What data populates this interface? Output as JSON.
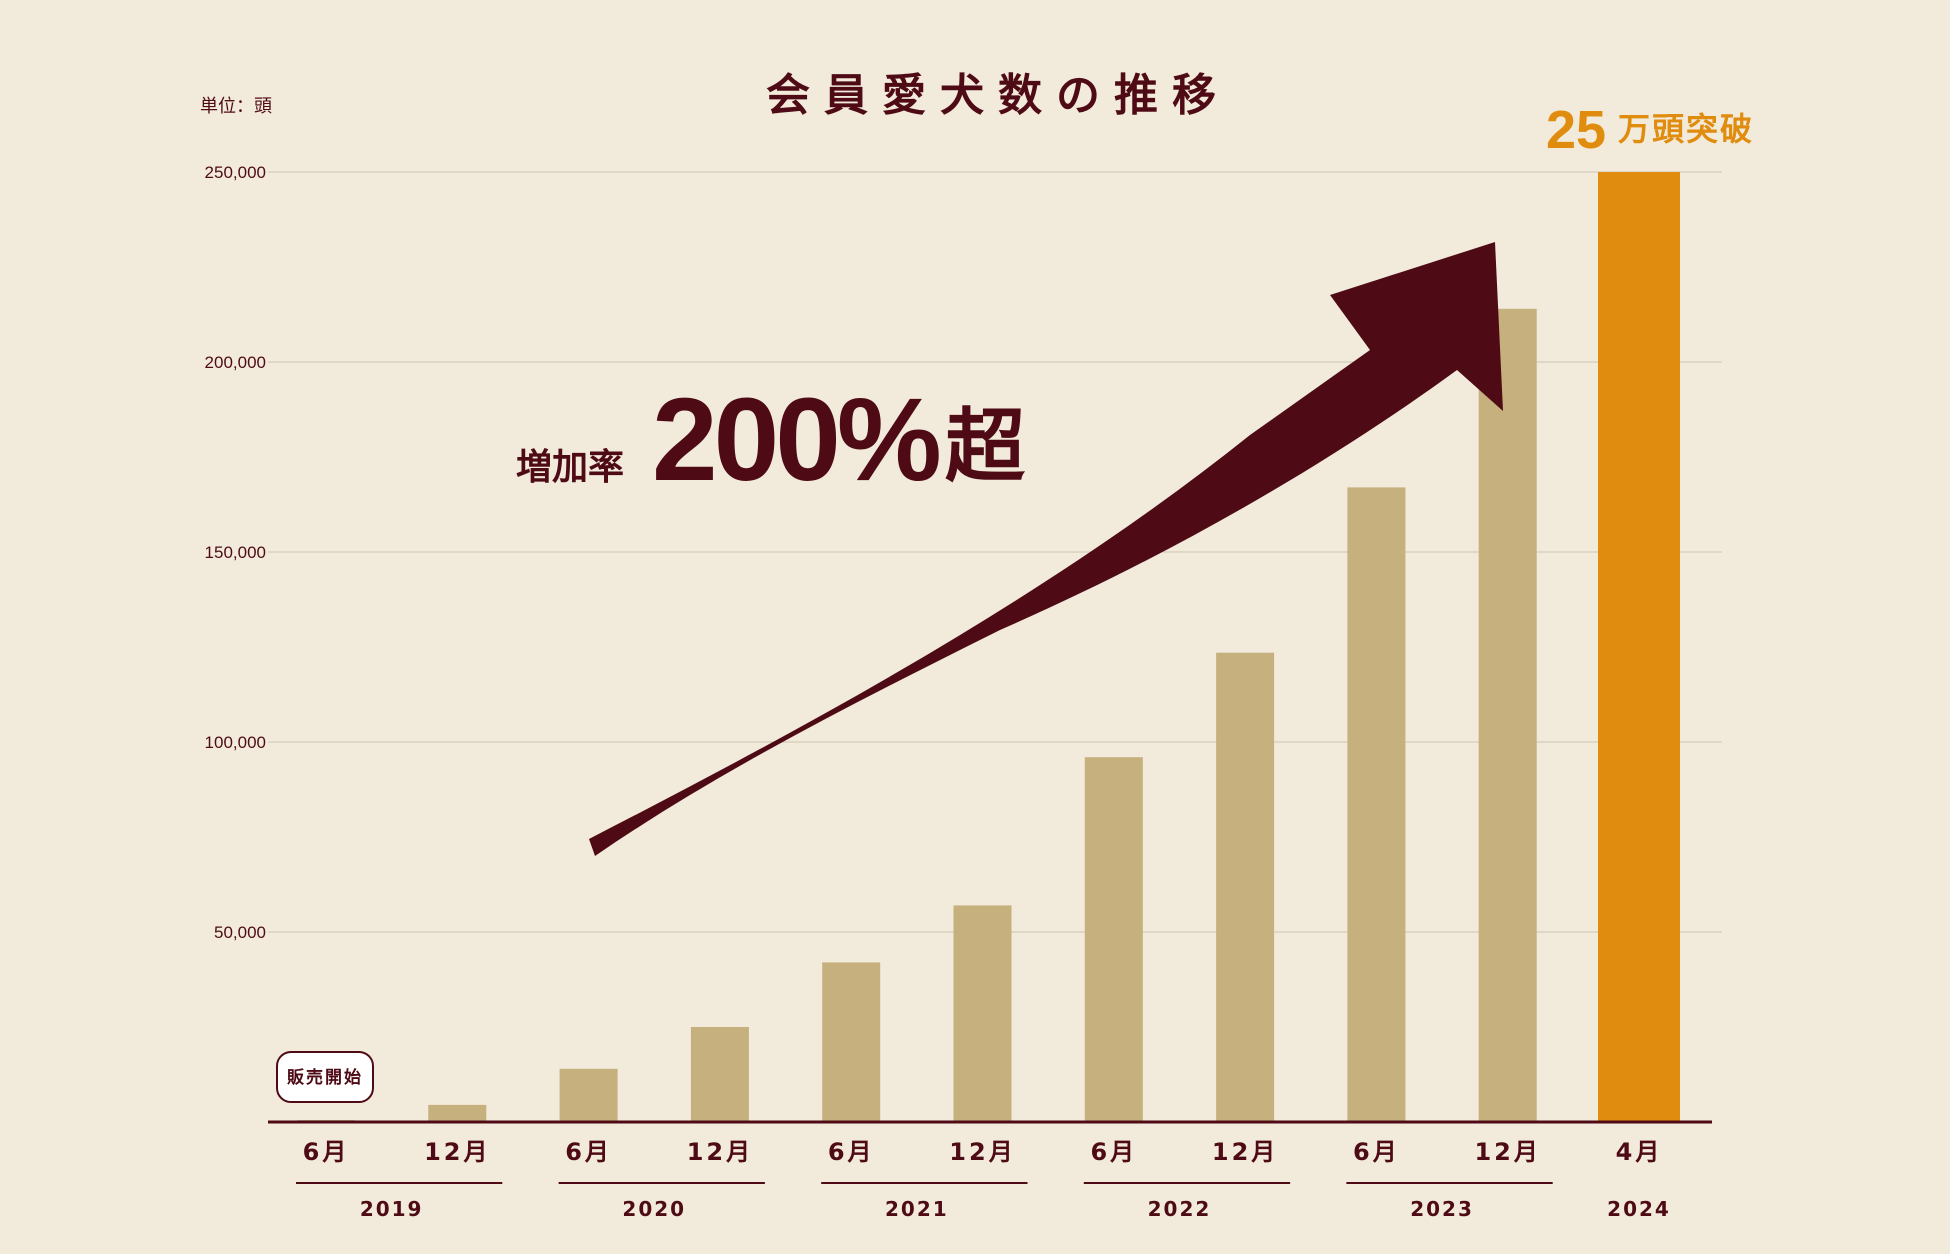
{
  "chart_data": {
    "type": "bar",
    "title": "会員愛犬数の推移",
    "unit_label": "単位：頭",
    "categories": [
      "6月",
      "12月",
      "6月",
      "12月",
      "6月",
      "12月",
      "6月",
      "12月",
      "6月",
      "12月",
      "4月"
    ],
    "category_years": [
      "2019",
      "2019",
      "2020",
      "2020",
      "2021",
      "2021",
      "2022",
      "2022",
      "2023",
      "2023",
      "2024"
    ],
    "year_groups": [
      "2019",
      "2020",
      "2021",
      "2022",
      "2023",
      "2024"
    ],
    "values": [
      500,
      4500,
      14000,
      25000,
      42000,
      57000,
      96000,
      123500,
      167000,
      214000,
      250000
    ],
    "ylim": [
      0,
      250000
    ],
    "yticks": [
      "50,000",
      "100,000",
      "150,000",
      "200,000",
      "250,000"
    ],
    "ytick_values": [
      50000,
      100000,
      150000,
      200000,
      250000
    ],
    "grid": true,
    "colors": {
      "bar": "#c6b07e",
      "highlight": "#e08c0f",
      "accent": "#4e0b16",
      "grid": "#cfc6b3",
      "background": "#f2eada"
    },
    "highlight_index": 10,
    "annotations": {
      "launch_badge": "販売開始",
      "growth_prefix": "増加率",
      "growth_value": "200%",
      "growth_suffix": "超",
      "milestone_number": "25",
      "milestone_text": "万頭突破"
    }
  }
}
